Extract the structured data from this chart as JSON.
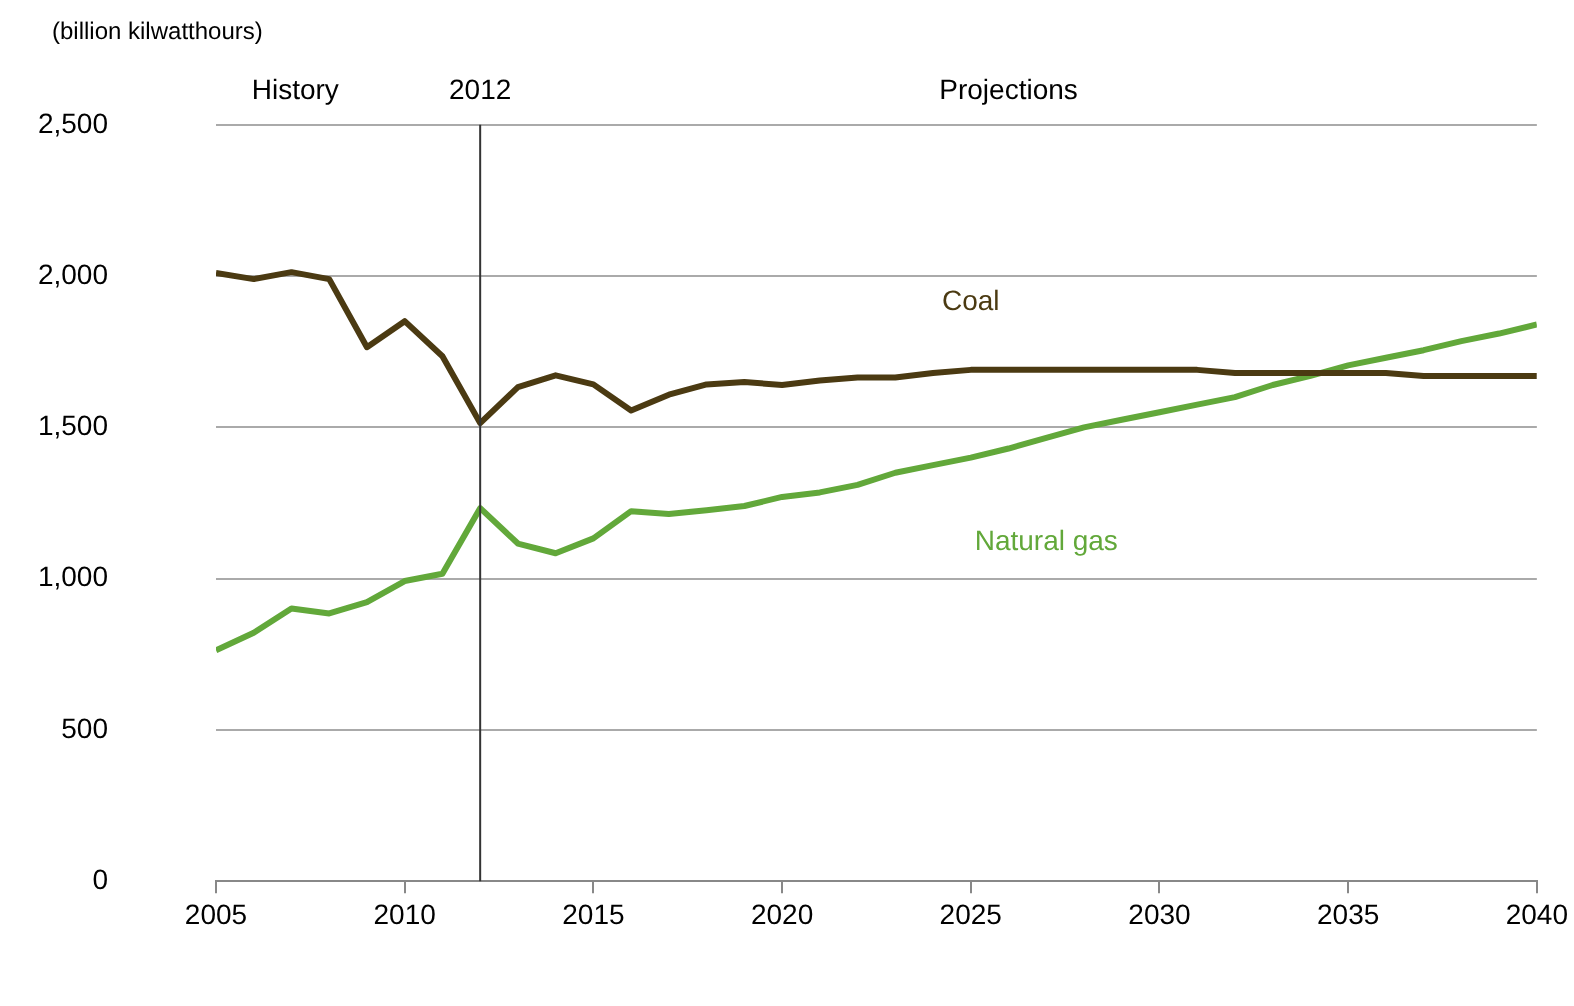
{
  "chart_data": {
    "type": "line",
    "ylabel": "(billion kilwatthours)",
    "annotations": [
      "History",
      "Projections"
    ],
    "x": [
      2005,
      2006,
      2007,
      2008,
      2009,
      2010,
      2011,
      2012,
      2013,
      2014,
      2015,
      2016,
      2017,
      2018,
      2019,
      2020,
      2021,
      2022,
      2023,
      2024,
      2025,
      2026,
      2027,
      2028,
      2029,
      2030,
      2031,
      2032,
      2033,
      2034,
      2035,
      2036,
      2037,
      2038,
      2039,
      2040
    ],
    "series": [
      {
        "name": "Coal",
        "color": "#4b3a12",
        "values": [
          2010,
          1990,
          2013,
          1990,
          1765,
          1851,
          1735,
          1514,
          1633,
          1672,
          1642,
          1556,
          1608,
          1642,
          1650,
          1640,
          1655,
          1665,
          1665,
          1680,
          1690,
          1690,
          1690,
          1690,
          1690,
          1690,
          1690,
          1680,
          1680,
          1680,
          1680,
          1680,
          1670,
          1670,
          1670,
          1670
        ]
      },
      {
        "name": "Natural gas",
        "color": "#62a83a",
        "values": [
          763,
          821,
          901,
          885,
          922,
          992,
          1016,
          1233,
          1116,
          1084,
          1133,
          1223,
          1214,
          1226,
          1240,
          1270,
          1285,
          1310,
          1350,
          1375,
          1400,
          1430,
          1465,
          1500,
          1525,
          1550,
          1575,
          1600,
          1640,
          1670,
          1705,
          1730,
          1755,
          1785,
          1810,
          1840
        ]
      }
    ],
    "xlim": [
      2005,
      2040
    ],
    "xticks": [
      2005,
      2010,
      2015,
      2020,
      2025,
      2030,
      2035,
      2040
    ],
    "ylim": [
      0,
      2500
    ],
    "yticks": [
      {
        "value": 0,
        "label": "0"
      },
      {
        "value": 500,
        "label": "500"
      },
      {
        "value": 1000,
        "label": "1,000"
      },
      {
        "value": 1500,
        "label": "1,500"
      },
      {
        "value": 2000,
        "label": "2,000"
      },
      {
        "value": 2500,
        "label": "2,500"
      }
    ],
    "ref_lines": [
      {
        "axis": "x",
        "value": 2012,
        "label": "2012",
        "color": "#333333"
      }
    ],
    "grid": "y",
    "legend": false,
    "marker": "none",
    "line_style": "solid"
  }
}
